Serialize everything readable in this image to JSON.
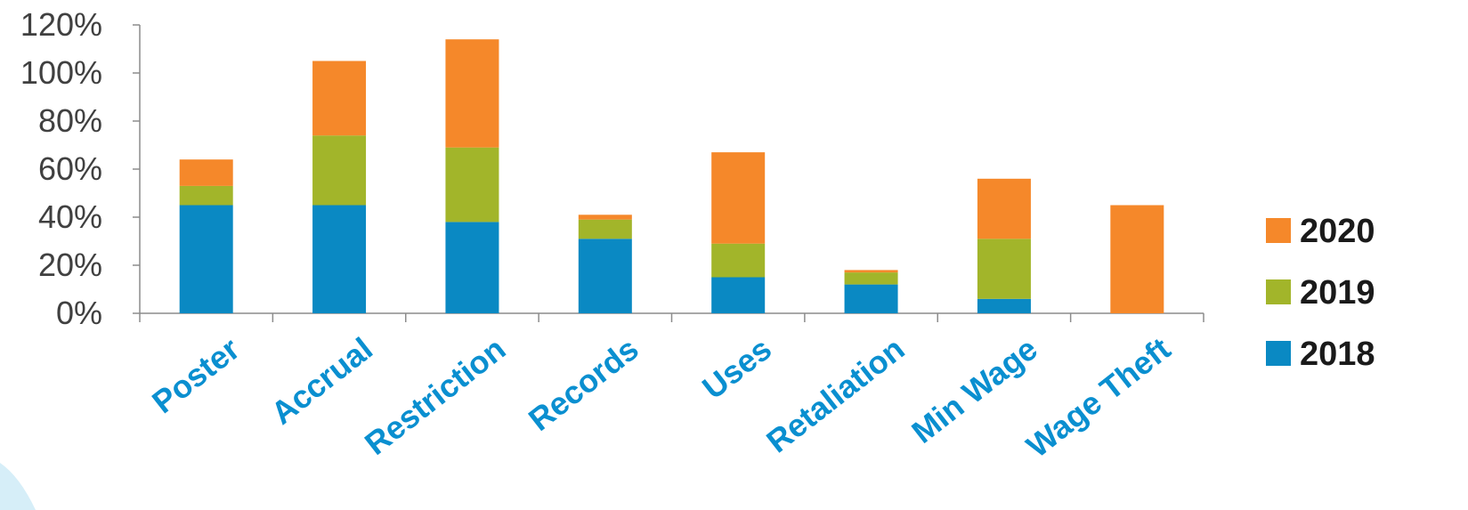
{
  "chart_data": {
    "type": "bar",
    "stacked": true,
    "categories": [
      "Poster",
      "Accrual",
      "Restriction",
      "Records",
      "Uses",
      "Retaliation",
      "Min Wage",
      "Wage Theft"
    ],
    "series": [
      {
        "name": "2018",
        "color": "#0a89c3",
        "values": [
          45,
          45,
          38,
          31,
          15,
          12,
          6,
          0
        ]
      },
      {
        "name": "2019",
        "color": "#a2b52a",
        "values": [
          8,
          29,
          31,
          8,
          14,
          5,
          25,
          0
        ]
      },
      {
        "name": "2020",
        "color": "#f5882a",
        "values": [
          11,
          31,
          45,
          2,
          38,
          1,
          25,
          45
        ]
      }
    ],
    "ylim": [
      0,
      120
    ],
    "yticks": [
      0,
      20,
      40,
      60,
      80,
      100,
      120
    ],
    "ytick_labels": [
      "0%",
      "20%",
      "40%",
      "60%",
      "80%",
      "100%",
      "120%"
    ],
    "legend_position": "right",
    "grid": false
  }
}
